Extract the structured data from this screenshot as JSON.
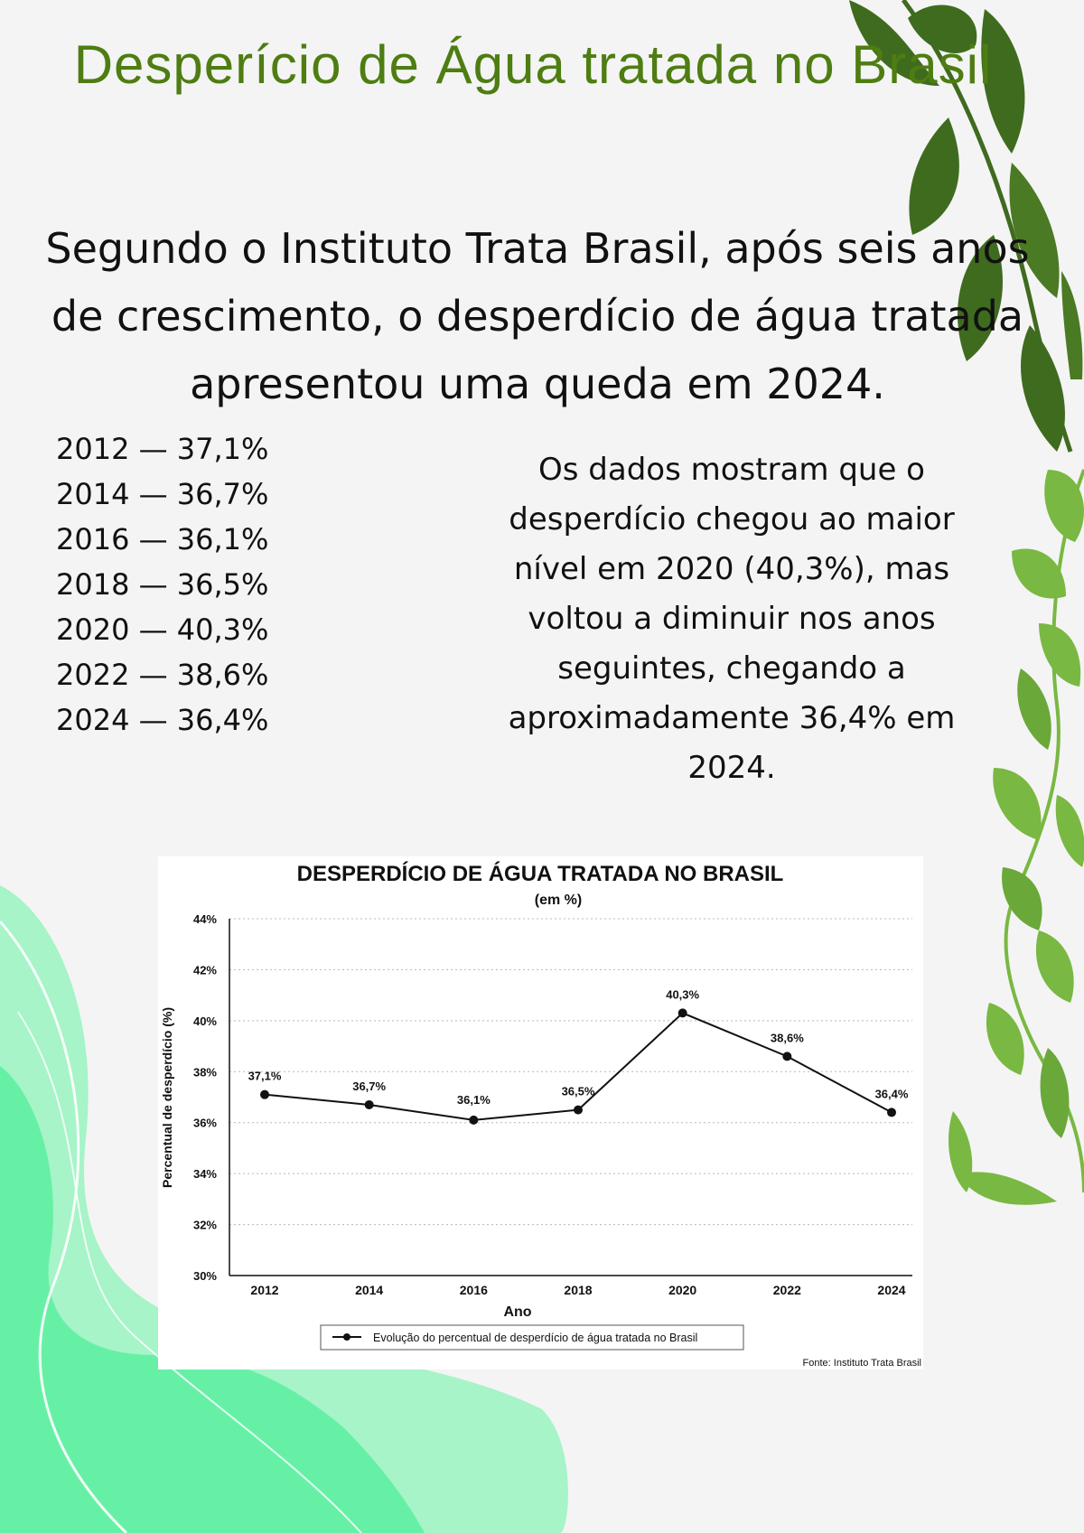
{
  "title": "Desperício de Água tratada no Brasil",
  "intro": "Segundo o Instituto Trata Brasil, após seis anos de crescimento, o desperdício de água tratada apresentou uma queda em 2024.",
  "data_list": [
    "2012 — 37,1%",
    "2014 — 36,7%",
    "2016 — 36,1%",
    "2018 — 36,5%",
    "2020 — 40,3%",
    "2022 — 38,6%",
    "2024 — 36,4%"
  ],
  "summary": "Os dados mostram que o desperdício chegou ao maior nível em 2020 (40,3%), mas voltou a diminuir nos anos seguintes, chegando a aproximadamente 36,4% em 2024.",
  "colors": {
    "title": "#4e7d12",
    "leaf_dark": "#3f6b1f",
    "leaf_light": "#79b842",
    "wave_green": "#66f0a6",
    "wave_light": "#a6f4c7"
  },
  "chart_data": {
    "type": "line",
    "title": "DESPERDÍCIO DE ÁGUA TRATADA NO BRASIL",
    "subtitle": "(em %)",
    "xlabel": "Ano",
    "ylabel": "Percentual de desperdício (%)",
    "x": [
      "2012",
      "2014",
      "2016",
      "2018",
      "2020",
      "2022",
      "2024"
    ],
    "series": [
      {
        "name": "Evolução do percentual de desperdício de água tratada no Brasil",
        "values": [
          37.1,
          36.7,
          36.1,
          36.5,
          40.3,
          38.6,
          36.4
        ],
        "labels": [
          "37,1%",
          "36,7%",
          "36,1%",
          "36,5%",
          "40,3%",
          "38,6%",
          "36,4%"
        ]
      }
    ],
    "ylim": [
      30,
      44
    ],
    "yticks": [
      30,
      32,
      34,
      36,
      38,
      40,
      42,
      44
    ],
    "ytick_labels": [
      "30%",
      "32%",
      "34%",
      "36%",
      "38%",
      "40%",
      "42%",
      "44%"
    ],
    "grid": true,
    "legend_position": "bottom",
    "source": "Fonte: Instituto Trata Brasil"
  }
}
